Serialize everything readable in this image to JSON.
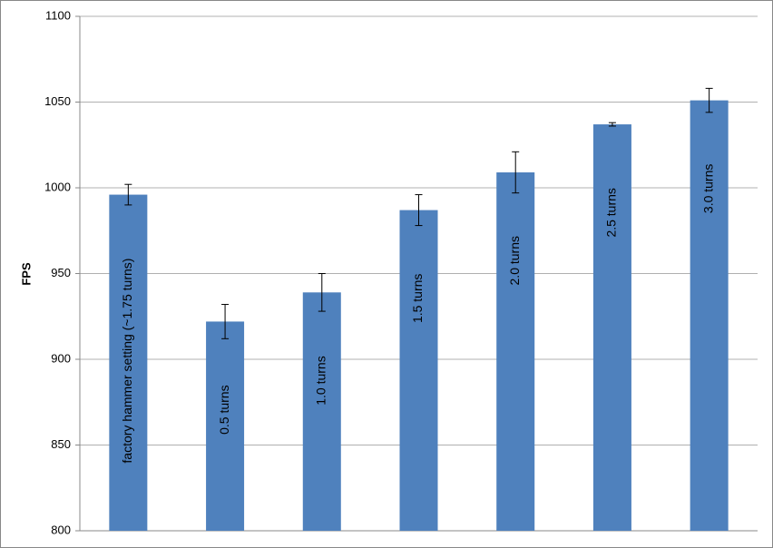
{
  "chart_data": {
    "type": "bar",
    "y_label": "FPS",
    "categories": [
      "factory hammer setting (~1.75 turns)",
      "0.5 turns",
      "1.0 turns",
      "1.5 turns",
      "2.0 turns",
      "2.5 turns",
      "3.0 turns"
    ],
    "values": [
      996,
      922,
      939,
      987,
      1009,
      1037,
      1051
    ],
    "errors": [
      6,
      10,
      11,
      9,
      12,
      1,
      7
    ],
    "color": "#4f81bd",
    "ylim": [
      800,
      1100
    ],
    "yticks": [
      800,
      850,
      900,
      950,
      1000,
      1050,
      1100
    ],
    "grid": true
  }
}
